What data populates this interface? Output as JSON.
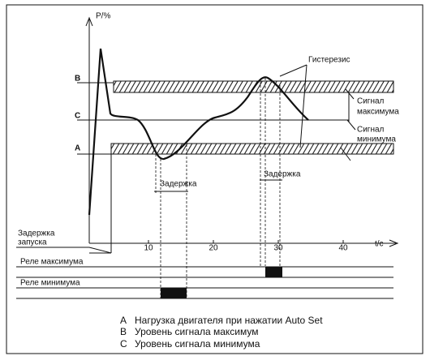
{
  "axes": {
    "y_label": "P/%",
    "x_label": "t/c",
    "x_ticks": [
      "10",
      "20",
      "30",
      "40"
    ]
  },
  "levels": {
    "b": "B",
    "c": "C",
    "a": "A"
  },
  "annotations": {
    "hysteresis": "Гистерезис",
    "signal_max": [
      "Сигнал",
      "максимума"
    ],
    "signal_min": [
      "Сигнал",
      "минимума"
    ],
    "delay_1": "Задержка",
    "delay_2": "Задержка",
    "start_delay": [
      "Задержка",
      "запуска"
    ]
  },
  "relays": {
    "max": "Реле максимума",
    "min": "Реле минимума"
  },
  "legend": [
    {
      "letter": "A",
      "text": "Нагрузка двигателя при нажатии Auto Set"
    },
    {
      "letter": "B",
      "text": "Уровень сигнала максимум"
    },
    {
      "letter": "C",
      "text": "Уровень сигнала минимума"
    }
  ]
}
